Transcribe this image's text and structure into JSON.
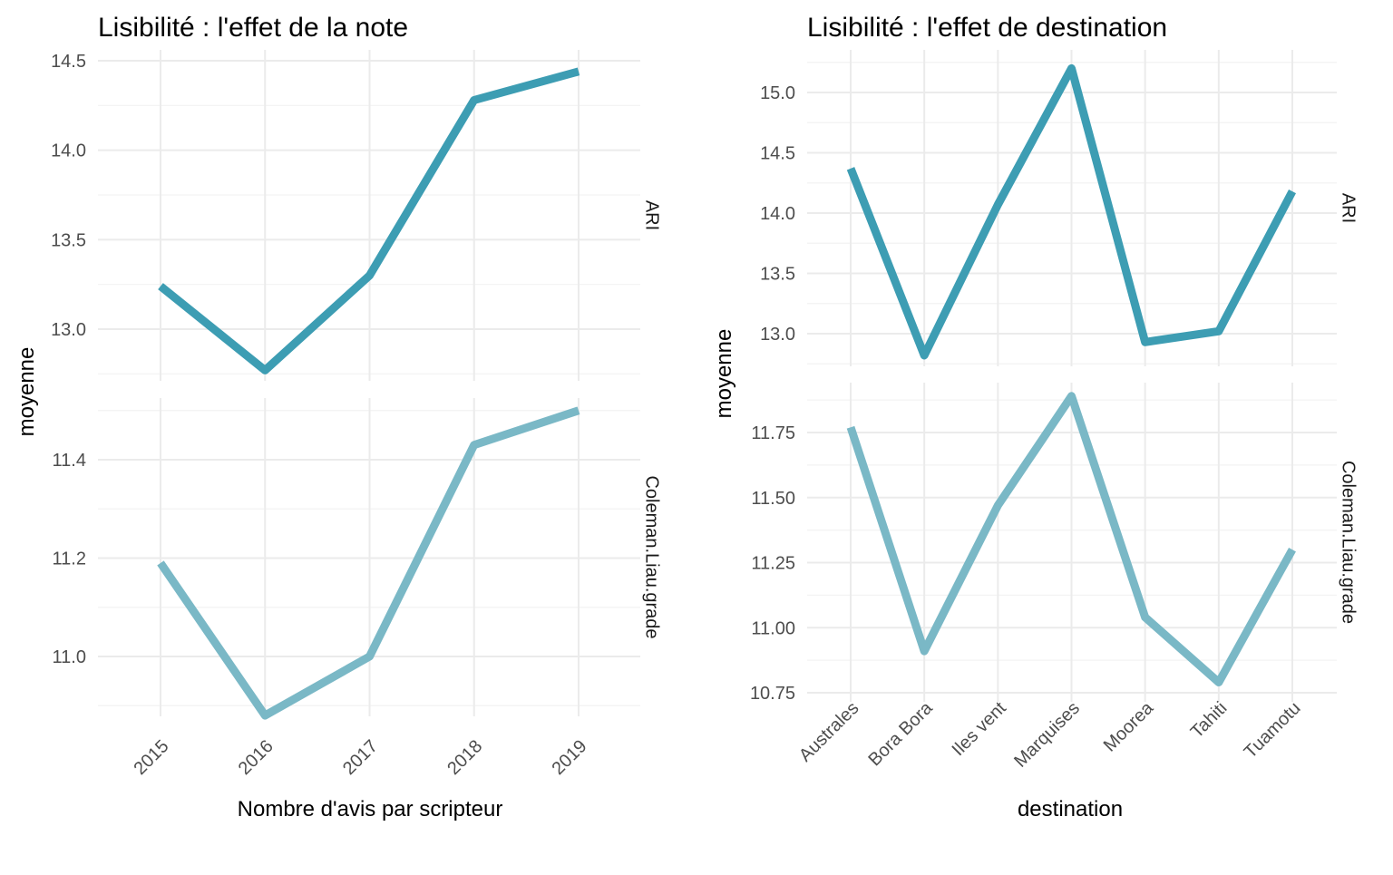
{
  "chart_data": [
    {
      "type": "line",
      "title": "Lisibilité : l'effet de la note",
      "xlabel": "Nombre d'avis par scripteur",
      "ylabel": "moyenne",
      "categories": [
        "2015",
        "2016",
        "2017",
        "2018",
        "2019"
      ],
      "grid": true,
      "facets": [
        {
          "label": "ARI",
          "color": "#3d9db3",
          "ylim": [
            12.75,
            14.5
          ],
          "yticks": [
            "13.0",
            "13.5",
            "14.0",
            "14.5"
          ],
          "values": [
            13.24,
            12.77,
            13.3,
            14.28,
            14.44
          ]
        },
        {
          "label": "Coleman.Liau.grade",
          "color": "#7ab8c6",
          "ylim": [
            10.85,
            11.5
          ],
          "yticks": [
            "11.0",
            "11.2",
            "11.4"
          ],
          "values": [
            11.19,
            10.88,
            11.0,
            11.43,
            11.5
          ]
        }
      ]
    },
    {
      "type": "line",
      "title": "Lisibilité : l'effet de destination",
      "xlabel": "destination",
      "ylabel": "moyenne",
      "categories": [
        "Australes",
        "Bora Bora",
        "Iles vent",
        "Marquises",
        "Moorea",
        "Tahiti",
        "Tuamotu"
      ],
      "grid": true,
      "facets": [
        {
          "label": "ARI",
          "color": "#3d9db3",
          "ylim": [
            12.75,
            15.2
          ],
          "yticks": [
            "13.0",
            "13.5",
            "14.0",
            "14.5",
            "15.0"
          ],
          "values": [
            14.37,
            12.82,
            14.07,
            15.2,
            12.93,
            13.02,
            14.18
          ]
        },
        {
          "label": "Coleman.Liau.grade",
          "color": "#7ab8c6",
          "ylim": [
            10.75,
            11.9
          ],
          "yticks": [
            "10.75",
            "11.00",
            "11.25",
            "11.50",
            "11.75"
          ],
          "values": [
            11.77,
            10.91,
            11.47,
            11.89,
            11.04,
            10.79,
            11.3
          ]
        }
      ]
    }
  ]
}
